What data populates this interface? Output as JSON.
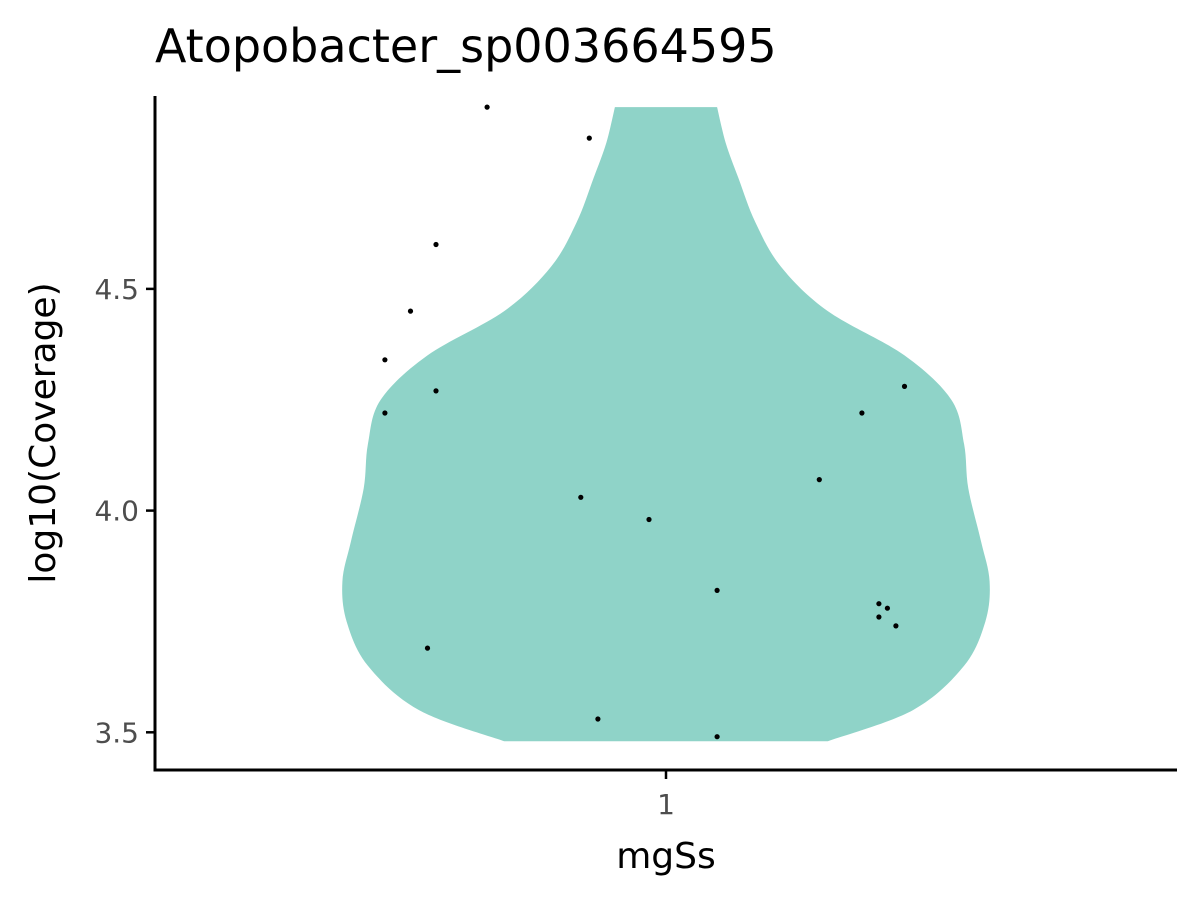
{
  "chart_data": {
    "type": "violin",
    "title": "Atopobacter_sp003664595",
    "xlabel": "mgSs",
    "ylabel": "log10(Coverage)",
    "categories": [
      "1"
    ],
    "yticks": [
      3.5,
      4.0,
      4.5
    ],
    "ylim": [
      3.415,
      4.935
    ],
    "fill_color": "#8fd3c8",
    "point_color": "#000000",
    "grid": false,
    "legend": "none",
    "violin": {
      "ymin": 3.48,
      "ymax": 4.91,
      "profile": [
        {
          "y": 3.48,
          "half_width": 0.38
        },
        {
          "y": 3.55,
          "half_width": 0.58
        },
        {
          "y": 3.65,
          "half_width": 0.7
        },
        {
          "y": 3.75,
          "half_width": 0.75
        },
        {
          "y": 3.84,
          "half_width": 0.76
        },
        {
          "y": 3.93,
          "half_width": 0.74
        },
        {
          "y": 4.05,
          "half_width": 0.71
        },
        {
          "y": 4.15,
          "half_width": 0.7
        },
        {
          "y": 4.25,
          "half_width": 0.67
        },
        {
          "y": 4.35,
          "half_width": 0.56
        },
        {
          "y": 4.45,
          "half_width": 0.38
        },
        {
          "y": 4.55,
          "half_width": 0.27
        },
        {
          "y": 4.65,
          "half_width": 0.21
        },
        {
          "y": 4.75,
          "half_width": 0.17
        },
        {
          "y": 4.83,
          "half_width": 0.14
        },
        {
          "y": 4.91,
          "half_width": 0.12
        }
      ]
    },
    "points": [
      {
        "x": 0.79,
        "y": 4.91
      },
      {
        "x": 0.91,
        "y": 4.84
      },
      {
        "x": 0.73,
        "y": 4.6
      },
      {
        "x": 0.7,
        "y": 4.45
      },
      {
        "x": 0.67,
        "y": 4.34
      },
      {
        "x": 0.73,
        "y": 4.27
      },
      {
        "x": 1.28,
        "y": 4.28
      },
      {
        "x": 0.67,
        "y": 4.22
      },
      {
        "x": 1.23,
        "y": 4.22
      },
      {
        "x": 1.18,
        "y": 4.07
      },
      {
        "x": 0.9,
        "y": 4.03
      },
      {
        "x": 0.98,
        "y": 3.98
      },
      {
        "x": 1.06,
        "y": 3.82
      },
      {
        "x": 1.25,
        "y": 3.79
      },
      {
        "x": 1.26,
        "y": 3.78
      },
      {
        "x": 1.25,
        "y": 3.76
      },
      {
        "x": 1.27,
        "y": 3.74
      },
      {
        "x": 0.72,
        "y": 3.69
      },
      {
        "x": 0.92,
        "y": 3.53
      },
      {
        "x": 1.06,
        "y": 3.49
      }
    ]
  }
}
